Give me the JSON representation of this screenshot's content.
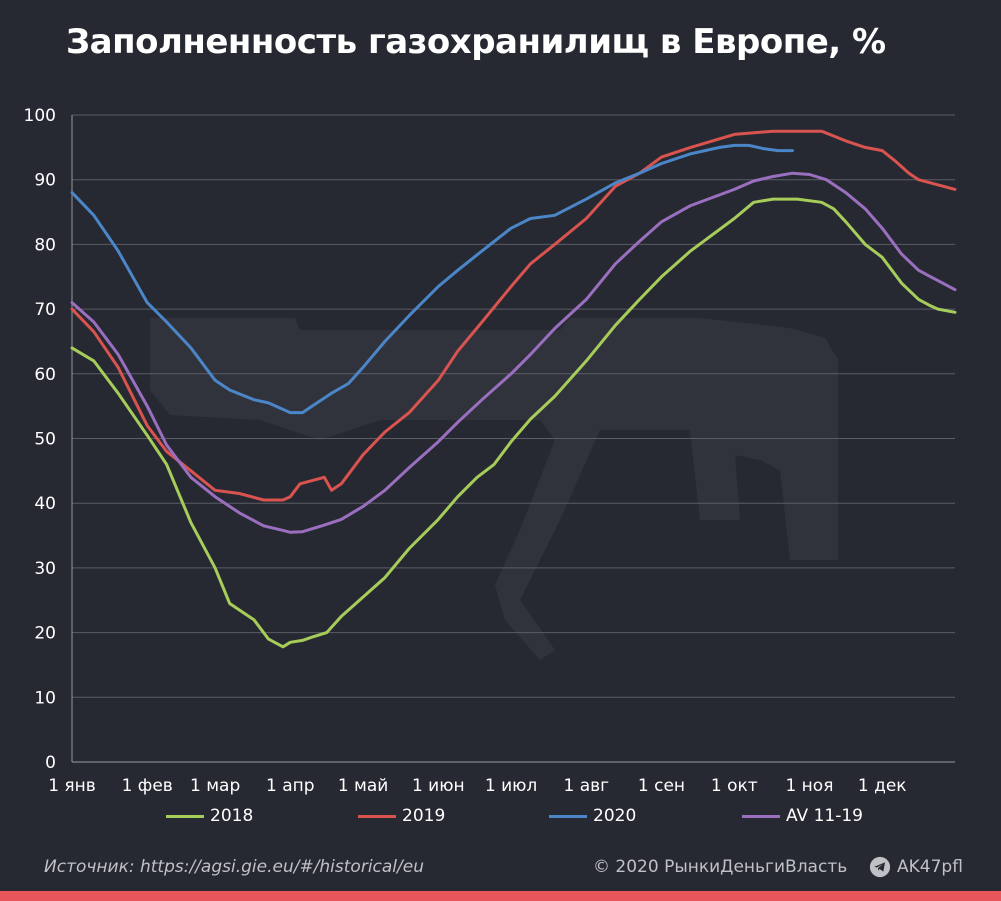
{
  "title": "Заполненность газохранилищ в Европе, %",
  "colors": {
    "background": "#262932",
    "s2018": "#a6cc5a",
    "s2019": "#d9534f",
    "s2020": "#4b86c8",
    "avg": "#9a6fbf",
    "accent_bar": "#e8555b"
  },
  "chart_data": {
    "type": "line",
    "title": "Заполненность газохранилищ в Европе, %",
    "ylim": [
      0,
      100
    ],
    "yticks": [
      0,
      10,
      20,
      30,
      40,
      50,
      60,
      70,
      80,
      90,
      100
    ],
    "xlim": [
      1,
      365
    ],
    "grid": true,
    "legend_position": "bottom",
    "x_ticks": [
      {
        "label": "1 янв",
        "day": 1
      },
      {
        "label": "1 фев",
        "day": 32
      },
      {
        "label": "1 мар",
        "day": 60
      },
      {
        "label": "1 апр",
        "day": 91
      },
      {
        "label": "1 май",
        "day": 121
      },
      {
        "label": "1 июн",
        "day": 152
      },
      {
        "label": "1 июл",
        "day": 182
      },
      {
        "label": "1 авг",
        "day": 213
      },
      {
        "label": "1 сен",
        "day": 244
      },
      {
        "label": "1 окт",
        "day": 274
      },
      {
        "label": "1 ноя",
        "day": 305
      },
      {
        "label": "1 дек",
        "day": 335
      }
    ],
    "series": [
      {
        "name": "2018",
        "color": "#a6cc5a",
        "points": [
          [
            1,
            64
          ],
          [
            10,
            62
          ],
          [
            20,
            57
          ],
          [
            32,
            50.5
          ],
          [
            40,
            46
          ],
          [
            50,
            37
          ],
          [
            60,
            30
          ],
          [
            66,
            24.5
          ],
          [
            76,
            22
          ],
          [
            82,
            19
          ],
          [
            88,
            17.8
          ],
          [
            91,
            18.5
          ],
          [
            96,
            18.8
          ],
          [
            100,
            19.3
          ],
          [
            106,
            20
          ],
          [
            112,
            22.5
          ],
          [
            121,
            25.5
          ],
          [
            130,
            28.5
          ],
          [
            140,
            33
          ],
          [
            152,
            37.5
          ],
          [
            160,
            41
          ],
          [
            168,
            44
          ],
          [
            175,
            46
          ],
          [
            182,
            49.5
          ],
          [
            190,
            53
          ],
          [
            200,
            56.5
          ],
          [
            213,
            62
          ],
          [
            225,
            67.5
          ],
          [
            235,
            71.5
          ],
          [
            244,
            75
          ],
          [
            256,
            79
          ],
          [
            274,
            84
          ],
          [
            282,
            86.5
          ],
          [
            290,
            87
          ],
          [
            300,
            87
          ],
          [
            310,
            86.5
          ],
          [
            315,
            85.5
          ],
          [
            320,
            83.5
          ],
          [
            328,
            80
          ],
          [
            335,
            78
          ],
          [
            343,
            74
          ],
          [
            350,
            71.5
          ],
          [
            355,
            70.5
          ],
          [
            358,
            70
          ],
          [
            365,
            69.5
          ]
        ]
      },
      {
        "name": "2019",
        "color": "#d9534f",
        "points": [
          [
            1,
            70
          ],
          [
            10,
            66.5
          ],
          [
            20,
            61
          ],
          [
            32,
            52
          ],
          [
            40,
            48
          ],
          [
            50,
            45
          ],
          [
            60,
            42
          ],
          [
            70,
            41.5
          ],
          [
            80,
            40.5
          ],
          [
            88,
            40.5
          ],
          [
            91,
            41
          ],
          [
            95,
            43
          ],
          [
            100,
            43.5
          ],
          [
            105,
            44
          ],
          [
            108,
            42
          ],
          [
            112,
            43
          ],
          [
            121,
            47.5
          ],
          [
            130,
            51
          ],
          [
            140,
            54
          ],
          [
            152,
            59
          ],
          [
            160,
            63.5
          ],
          [
            170,
            68
          ],
          [
            182,
            73.5
          ],
          [
            190,
            77
          ],
          [
            200,
            80
          ],
          [
            213,
            84
          ],
          [
            225,
            89
          ],
          [
            235,
            91
          ],
          [
            244,
            93.5
          ],
          [
            256,
            95
          ],
          [
            274,
            97
          ],
          [
            290,
            97.5
          ],
          [
            300,
            97.5
          ],
          [
            310,
            97.5
          ],
          [
            320,
            96
          ],
          [
            328,
            95
          ],
          [
            335,
            94.5
          ],
          [
            340,
            93
          ],
          [
            346,
            91
          ],
          [
            350,
            90
          ],
          [
            355,
            89.5
          ],
          [
            360,
            89
          ],
          [
            365,
            88.5
          ]
        ]
      },
      {
        "name": "2020",
        "color": "#4b86c8",
        "points": [
          [
            1,
            88
          ],
          [
            10,
            84.5
          ],
          [
            20,
            79
          ],
          [
            32,
            71
          ],
          [
            40,
            68
          ],
          [
            50,
            64
          ],
          [
            60,
            59
          ],
          [
            66,
            57.5
          ],
          [
            76,
            56
          ],
          [
            82,
            55.5
          ],
          [
            88,
            54.5
          ],
          [
            91,
            54
          ],
          [
            96,
            54
          ],
          [
            102,
            55.5
          ],
          [
            108,
            57
          ],
          [
            115,
            58.5
          ],
          [
            121,
            61
          ],
          [
            130,
            65
          ],
          [
            140,
            69
          ],
          [
            152,
            73.5
          ],
          [
            160,
            76
          ],
          [
            170,
            79
          ],
          [
            182,
            82.5
          ],
          [
            190,
            84
          ],
          [
            200,
            84.5
          ],
          [
            213,
            87
          ],
          [
            225,
            89.5
          ],
          [
            235,
            91
          ],
          [
            244,
            92.5
          ],
          [
            256,
            94
          ],
          [
            268,
            95
          ],
          [
            274,
            95.3
          ],
          [
            280,
            95.3
          ],
          [
            286,
            94.8
          ],
          [
            292,
            94.5
          ],
          [
            298,
            94.5
          ]
        ]
      },
      {
        "name": "AV 11-19",
        "color": "#9a6fbf",
        "points": [
          [
            1,
            71
          ],
          [
            10,
            68
          ],
          [
            20,
            63
          ],
          [
            32,
            55
          ],
          [
            40,
            49
          ],
          [
            50,
            44
          ],
          [
            60,
            41
          ],
          [
            70,
            38.5
          ],
          [
            80,
            36.5
          ],
          [
            88,
            35.8
          ],
          [
            91,
            35.5
          ],
          [
            96,
            35.6
          ],
          [
            104,
            36.5
          ],
          [
            112,
            37.5
          ],
          [
            121,
            39.5
          ],
          [
            130,
            42
          ],
          [
            140,
            45.5
          ],
          [
            152,
            49.5
          ],
          [
            160,
            52.5
          ],
          [
            170,
            56
          ],
          [
            182,
            60
          ],
          [
            190,
            63
          ],
          [
            200,
            67
          ],
          [
            213,
            71.5
          ],
          [
            225,
            77
          ],
          [
            235,
            80.5
          ],
          [
            244,
            83.5
          ],
          [
            256,
            86
          ],
          [
            274,
            88.5
          ],
          [
            282,
            89.8
          ],
          [
            290,
            90.5
          ],
          [
            298,
            91
          ],
          [
            305,
            90.8
          ],
          [
            312,
            90
          ],
          [
            320,
            88
          ],
          [
            328,
            85.5
          ],
          [
            335,
            82.5
          ],
          [
            343,
            78.5
          ],
          [
            350,
            76
          ],
          [
            355,
            75
          ],
          [
            360,
            74
          ],
          [
            365,
            73
          ]
        ]
      }
    ]
  },
  "legend": [
    {
      "label": "2018",
      "color": "#a6cc5a"
    },
    {
      "label": "2019",
      "color": "#d9534f"
    },
    {
      "label": "2020",
      "color": "#4b86c8"
    },
    {
      "label": "AV 11-19",
      "color": "#9a6fbf"
    }
  ],
  "footer": {
    "source": "Источник: https://agsi.gie.eu/#/historical/eu",
    "copyright": "© 2020  РынкиДеньгиВласть",
    "telegram": "AK47pfl",
    "telegram_icon": "telegram-icon"
  }
}
